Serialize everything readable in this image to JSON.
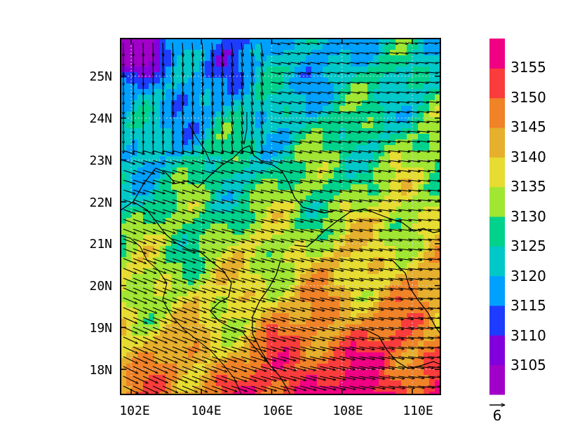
{
  "map": {
    "lon_range": [
      101.7,
      110.8
    ],
    "lat_range": [
      17.4,
      25.9
    ],
    "x_ticks": [
      "102E",
      "104E",
      "106E",
      "108E",
      "110E"
    ],
    "x_tick_values": [
      102,
      104,
      106,
      108,
      110
    ],
    "y_ticks": [
      "18N",
      "19N",
      "20N",
      "21N",
      "22N",
      "23N",
      "24N",
      "25N"
    ],
    "y_tick_values": [
      18,
      19,
      20,
      21,
      22,
      23,
      24,
      25
    ],
    "gridlines": true,
    "field": "contour-fill",
    "vector_field": "wind-arrows"
  },
  "colorbar": {
    "levels": [
      "3105",
      "3110",
      "3115",
      "3120",
      "3125",
      "3130",
      "3135",
      "3140",
      "3145",
      "3150",
      "3155"
    ],
    "colors": [
      "#a000c8",
      "#8200dc",
      "#1e3cff",
      "#00a0ff",
      "#00c8c8",
      "#00d28c",
      "#a0e632",
      "#e6dc32",
      "#e6af2d",
      "#f08228",
      "#fa3c3c",
      "#f00082"
    ],
    "placement": "right"
  },
  "reference_vector": {
    "label": "6"
  }
}
